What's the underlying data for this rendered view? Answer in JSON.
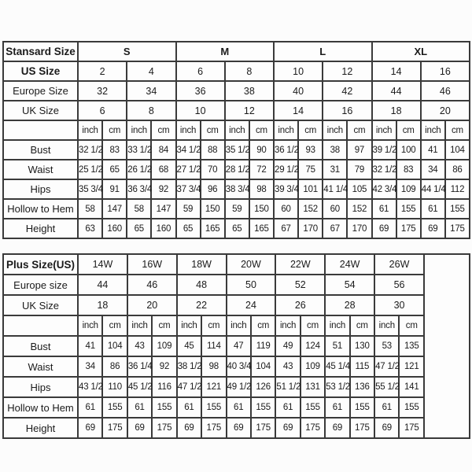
{
  "style": {
    "background_color": "#fcfcfc",
    "table_background_color": "#fdfdfd",
    "border_color": "#3a3a3a",
    "text_color": "#1b1b1b"
  },
  "chart_data": [
    {
      "type": "table",
      "title": "Stansard Size",
      "rows": [
        {
          "label": "Stansard Size",
          "label_bold": true,
          "cells_bold": true,
          "span": 4,
          "cells": [
            "S",
            "M",
            "L",
            "XL"
          ]
        },
        {
          "label": "US Size",
          "label_bold": true,
          "span": 2,
          "cells": [
            "2",
            "4",
            "6",
            "8",
            "10",
            "12",
            "14",
            "16"
          ]
        },
        {
          "label": "Europe Size",
          "span": 2,
          "cells": [
            "32",
            "34",
            "36",
            "38",
            "40",
            "42",
            "44",
            "46"
          ]
        },
        {
          "label": "UK Size",
          "span": 2,
          "cells": [
            "6",
            "8",
            "10",
            "12",
            "14",
            "16",
            "18",
            "20"
          ]
        },
        {
          "label": "",
          "span": 1,
          "cells": [
            "inch",
            "cm",
            "inch",
            "cm",
            "inch",
            "cm",
            "inch",
            "cm",
            "inch",
            "cm",
            "inch",
            "cm",
            "inch",
            "cm",
            "inch",
            "cm"
          ]
        },
        {
          "label": "Bust",
          "span": 1,
          "cells": [
            "32 1/2",
            "83",
            "33 1/2",
            "84",
            "34 1/2",
            "88",
            "35 1/2",
            "90",
            "36 1/2",
            "93",
            "38",
            "97",
            "39 1/2",
            "100",
            "41",
            "104"
          ]
        },
        {
          "label": "Waist",
          "span": 1,
          "cells": [
            "25 1/2",
            "65",
            "26 1/2",
            "68",
            "27 1/2",
            "70",
            "28 1/2",
            "72",
            "29 1/2",
            "75",
            "31",
            "79",
            "32 1/2",
            "83",
            "34",
            "86"
          ]
        },
        {
          "label": "Hips",
          "span": 1,
          "cells": [
            "35 3/4",
            "91",
            "36 3/4",
            "92",
            "37 3/4",
            "96",
            "38 3/4",
            "98",
            "39 3/4",
            "101",
            "41 1/4",
            "105",
            "42 3/4",
            "109",
            "44 1/4",
            "112"
          ]
        },
        {
          "label": "Hollow to Hem",
          "span": 1,
          "cells": [
            "58",
            "147",
            "58",
            "147",
            "59",
            "150",
            "59",
            "150",
            "60",
            "152",
            "60",
            "152",
            "61",
            "155",
            "61",
            "155"
          ]
        },
        {
          "label": "Height",
          "span": 1,
          "cells": [
            "63",
            "160",
            "65",
            "160",
            "65",
            "165",
            "65",
            "165",
            "67",
            "170",
            "67",
            "170",
            "69",
            "175",
            "69",
            "175"
          ]
        }
      ]
    },
    {
      "type": "table",
      "title": "Plus Size(US)",
      "trailing_empty_col": true,
      "rows": [
        {
          "label": "Plus Size(US)",
          "label_bold": true,
          "span": 2,
          "cells": [
            "14W",
            "16W",
            "18W",
            "20W",
            "22W",
            "24W",
            "26W"
          ]
        },
        {
          "label": "Europe size",
          "span": 2,
          "cells": [
            "44",
            "46",
            "48",
            "50",
            "52",
            "54",
            "56"
          ]
        },
        {
          "label": "UK Size",
          "span": 2,
          "cells": [
            "18",
            "20",
            "22",
            "24",
            "26",
            "28",
            "30"
          ]
        },
        {
          "label": "",
          "span": 1,
          "cells": [
            "inch",
            "cm",
            "inch",
            "cm",
            "inch",
            "cm",
            "inch",
            "cm",
            "inch",
            "cm",
            "inch",
            "cm",
            "inch",
            "cm"
          ]
        },
        {
          "label": "Bust",
          "span": 1,
          "cells": [
            "41",
            "104",
            "43",
            "109",
            "45",
            "114",
            "47",
            "119",
            "49",
            "124",
            "51",
            "130",
            "53",
            "135"
          ]
        },
        {
          "label": "Waist",
          "span": 1,
          "cells": [
            "34",
            "86",
            "36 1/4",
            "92",
            "38 1/2",
            "98",
            "40 3/4",
            "104",
            "43",
            "109",
            "45 1/4",
            "115",
            "47 1/2",
            "121"
          ]
        },
        {
          "label": "Hips",
          "span": 1,
          "cells": [
            "43 1/2",
            "110",
            "45 1/2",
            "116",
            "47 1/2",
            "121",
            "49 1/2",
            "126",
            "51 1/2",
            "131",
            "53 1/2",
            "136",
            "55 1/2",
            "141"
          ]
        },
        {
          "label": "Hollow to Hem",
          "span": 1,
          "cells": [
            "61",
            "155",
            "61",
            "155",
            "61",
            "155",
            "61",
            "155",
            "61",
            "155",
            "61",
            "155",
            "61",
            "155"
          ]
        },
        {
          "label": "Height",
          "span": 1,
          "cells": [
            "69",
            "175",
            "69",
            "175",
            "69",
            "175",
            "69",
            "175",
            "69",
            "175",
            "69",
            "175",
            "69",
            "175"
          ]
        }
      ]
    }
  ]
}
